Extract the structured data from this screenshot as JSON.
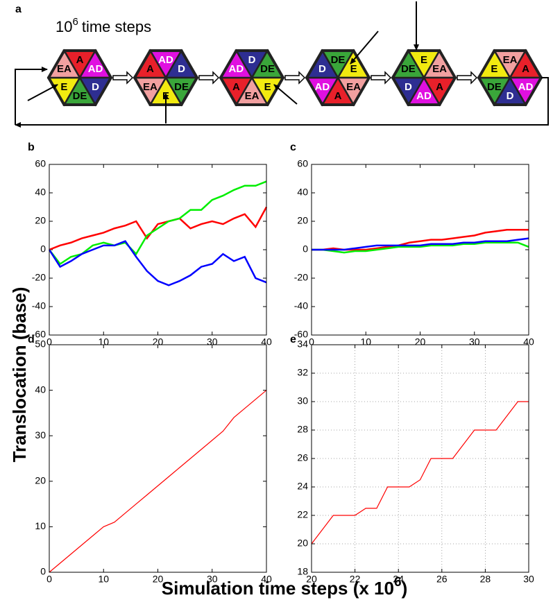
{
  "diagram": {
    "panel": "a",
    "caption": {
      "base": "10",
      "exponent": "6",
      "text": "time steps"
    },
    "palette": {
      "A": {
        "fill": "#e8202a",
        "text": "#000000"
      },
      "AD": {
        "fill": "#e010e0",
        "text": "#ffffff"
      },
      "D": {
        "fill": "#2e2e92",
        "text": "#ffffff"
      },
      "DE": {
        "fill": "#3aa63a",
        "text": "#000000"
      },
      "E": {
        "fill": "#f2ea10",
        "text": "#000000"
      },
      "EA": {
        "fill": "#f2a0a0",
        "text": "#000000"
      }
    },
    "hexagons": [
      [
        "A",
        "AD",
        "D",
        "DE",
        "E",
        "EA"
      ],
      [
        "AD",
        "D",
        "DE",
        "E",
        "EA",
        "A"
      ],
      [
        "D",
        "DE",
        "E",
        "EA",
        "A",
        "AD"
      ],
      [
        "DE",
        "E",
        "EA",
        "A",
        "AD",
        "D"
      ],
      [
        "E",
        "EA",
        "A",
        "AD",
        "D",
        "DE"
      ],
      [
        "EA",
        "A",
        "AD",
        "D",
        "DE",
        "E"
      ]
    ]
  },
  "y_label": "Translocation (base)",
  "x_label": {
    "text": "Simulation time steps (x 10",
    "exponent": "6",
    "close": ")"
  },
  "chart_data": [
    {
      "type": "line",
      "panel": "b",
      "x": [
        0,
        2,
        4,
        6,
        8,
        10,
        12,
        14,
        16,
        18,
        20,
        22,
        24,
        26,
        28,
        30,
        32,
        34,
        36,
        38,
        40
      ],
      "series": [
        {
          "color": "#ff0000",
          "values": [
            0,
            3,
            5,
            8,
            10,
            12,
            15,
            17,
            20,
            8,
            18,
            20,
            22,
            15,
            18,
            20,
            18,
            22,
            25,
            16,
            30
          ]
        },
        {
          "color": "#00ee00",
          "values": [
            0,
            -10,
            -5,
            -3,
            3,
            5,
            3,
            5,
            -3,
            10,
            15,
            20,
            22,
            28,
            28,
            35,
            38,
            42,
            45,
            45,
            48
          ]
        },
        {
          "color": "#0000ff",
          "values": [
            0,
            -12,
            -8,
            -3,
            0,
            3,
            3,
            6,
            -5,
            -15,
            -22,
            -25,
            -22,
            -18,
            -12,
            -10,
            -3,
            -8,
            -5,
            -20,
            -23
          ]
        }
      ],
      "xlim": [
        0,
        40
      ],
      "xticks": [
        0,
        10,
        20,
        30,
        40
      ],
      "ylim": [
        -60,
        60
      ],
      "yticks": [
        -60,
        -40,
        -20,
        0,
        20,
        40,
        60
      ],
      "grid": false
    },
    {
      "type": "line",
      "panel": "c",
      "x": [
        0,
        2,
        4,
        6,
        8,
        10,
        12,
        14,
        16,
        18,
        20,
        22,
        24,
        26,
        28,
        30,
        32,
        34,
        36,
        38,
        40
      ],
      "series": [
        {
          "color": "#ff0000",
          "values": [
            0,
            0,
            1,
            0,
            0,
            0,
            1,
            2,
            3,
            5,
            6,
            7,
            7,
            8,
            9,
            10,
            12,
            13,
            14,
            14,
            14
          ]
        },
        {
          "color": "#00ee00",
          "values": [
            0,
            0,
            -1,
            -2,
            -1,
            -1,
            0,
            1,
            2,
            2,
            2,
            3,
            3,
            3,
            4,
            4,
            5,
            5,
            5,
            5,
            2
          ]
        },
        {
          "color": "#0000ff",
          "values": [
            0,
            0,
            0,
            0,
            1,
            2,
            3,
            3,
            3,
            3,
            3,
            4,
            4,
            4,
            5,
            5,
            6,
            6,
            6,
            7,
            8
          ]
        }
      ],
      "xlim": [
        0,
        40
      ],
      "xticks": [
        0,
        10,
        20,
        30,
        40
      ],
      "ylim": [
        -60,
        60
      ],
      "yticks": [
        -60,
        -40,
        -20,
        0,
        20,
        40,
        60
      ],
      "grid": false
    },
    {
      "type": "line",
      "panel": "d",
      "x": [
        0,
        2,
        4,
        6,
        8,
        10,
        12,
        14,
        16,
        18,
        20,
        22,
        24,
        26,
        28,
        30,
        32,
        34,
        36,
        38,
        40
      ],
      "series": [
        {
          "color": "#ff0000",
          "values": [
            0,
            2,
            4,
            6,
            8,
            10,
            11,
            13,
            15,
            17,
            19,
            21,
            23,
            25,
            27,
            29,
            31,
            34,
            36,
            38,
            40
          ]
        }
      ],
      "xlim": [
        0,
        40
      ],
      "xticks": [
        0,
        10,
        20,
        30,
        40
      ],
      "ylim": [
        0,
        50
      ],
      "yticks": [
        0,
        10,
        20,
        30,
        40,
        50
      ],
      "grid": false
    },
    {
      "type": "line",
      "panel": "e",
      "x": [
        20,
        20.5,
        21,
        21.5,
        22,
        22.5,
        23,
        23.5,
        24,
        24.5,
        25,
        25.5,
        26,
        26.5,
        27,
        27.5,
        28,
        28.5,
        29,
        29.5,
        30
      ],
      "series": [
        {
          "color": "#ff0000",
          "values": [
            20,
            21,
            22,
            22,
            22,
            22.5,
            22.5,
            24,
            24,
            24,
            24.5,
            26,
            26,
            26,
            27,
            28,
            28,
            28,
            29,
            30,
            30
          ]
        }
      ],
      "xlim": [
        20,
        30
      ],
      "xticks": [
        20,
        22,
        24,
        26,
        28,
        30
      ],
      "ylim": [
        18,
        34
      ],
      "yticks": [
        18,
        20,
        22,
        24,
        26,
        28,
        30,
        32,
        34
      ],
      "grid": true
    }
  ]
}
